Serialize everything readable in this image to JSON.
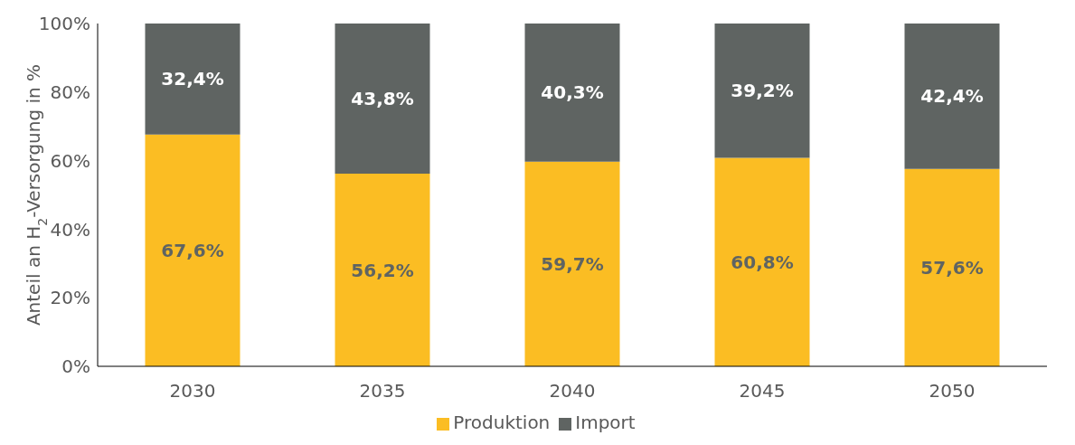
{
  "chart_data": {
    "type": "bar",
    "stacked": true,
    "ylabel": "Anteil an H$_{2}$-Versorgung in %",
    "categories": [
      "2030",
      "2035",
      "2040",
      "2045",
      "2050"
    ],
    "series": [
      {
        "name": "Produktion",
        "color": "#fbbd23",
        "values": [
          67.6,
          56.2,
          59.7,
          60.8,
          57.6
        ],
        "value_labels": [
          "67,6%",
          "56,2%",
          "59,7%",
          "60,8%",
          "57,6%"
        ]
      },
      {
        "name": "Import",
        "color": "#5f6462",
        "values": [
          32.4,
          43.8,
          40.3,
          39.2,
          42.4
        ],
        "value_labels": [
          "32,4%",
          "43,8%",
          "40,3%",
          "39,2%",
          "42,4%"
        ]
      }
    ],
    "ylim": [
      0,
      100
    ],
    "yticks": [
      {
        "value": 0,
        "label": "0%"
      },
      {
        "value": 20,
        "label": "20%"
      },
      {
        "value": 40,
        "label": "40%"
      },
      {
        "value": 60,
        "label": "60%"
      },
      {
        "value": 80,
        "label": "80%"
      },
      {
        "value": 100,
        "label": "100%"
      }
    ],
    "grid": false,
    "legend": "bottom"
  }
}
